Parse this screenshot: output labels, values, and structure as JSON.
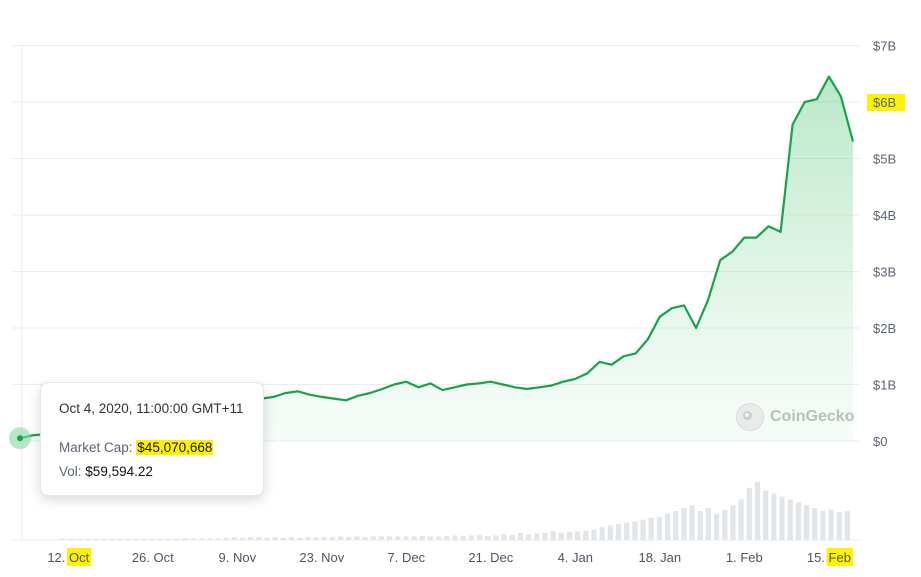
{
  "chart_data": {
    "type": "area",
    "x_tick_labels": [
      {
        "day": "12.",
        "month": "Oct",
        "highlight": true
      },
      {
        "day": "26.",
        "month": "Oct",
        "highlight": false
      },
      {
        "day": "9.",
        "month": "Nov",
        "highlight": false
      },
      {
        "day": "23.",
        "month": "Nov",
        "highlight": false
      },
      {
        "day": "7.",
        "month": "Dec",
        "highlight": false
      },
      {
        "day": "21.",
        "month": "Dec",
        "highlight": false
      },
      {
        "day": "4.",
        "month": "Jan",
        "highlight": false
      },
      {
        "day": "18.",
        "month": "Jan",
        "highlight": false
      },
      {
        "day": "1.",
        "month": "Feb",
        "highlight": false
      },
      {
        "day": "15.",
        "month": "Feb",
        "highlight": true
      }
    ],
    "x_tick_positions_days": [
      8,
      22,
      36,
      50,
      64,
      78,
      92,
      106,
      120,
      134
    ],
    "y_tick_labels": [
      {
        "label": "$0",
        "value": 0,
        "highlight": false
      },
      {
        "label": "$1B",
        "value": 1,
        "highlight": false
      },
      {
        "label": "$2B",
        "value": 2,
        "highlight": false
      },
      {
        "label": "$3B",
        "value": 3,
        "highlight": false
      },
      {
        "label": "$4B",
        "value": 4,
        "highlight": false
      },
      {
        "label": "$5B",
        "value": 5,
        "highlight": false
      },
      {
        "label": "$6B",
        "value": 6,
        "highlight": true
      },
      {
        "label": "$7B",
        "value": 7,
        "highlight": false
      }
    ],
    "ylim": [
      0,
      7
    ],
    "y_unit": "B USD",
    "xlim_days": [
      0,
      138
    ],
    "grid": true,
    "series": [
      {
        "color": "#16a34a",
        "x_days": [
          0,
          2,
          4,
          6,
          8,
          10,
          12,
          14,
          16,
          18,
          20,
          22,
          24,
          26,
          28,
          30,
          32,
          34,
          36,
          38,
          40,
          42,
          44,
          46,
          48,
          50,
          52,
          54,
          56,
          58,
          60,
          62,
          64,
          66,
          68,
          70,
          72,
          74,
          76,
          78,
          80,
          82,
          84,
          86,
          88,
          90,
          92,
          94,
          96,
          98,
          100,
          102,
          104,
          106,
          108,
          110,
          112,
          114,
          116,
          118,
          120,
          122,
          124,
          126,
          128,
          130,
          132,
          134,
          136,
          138
        ],
        "values": [
          0.05,
          0.1,
          0.12,
          0.15,
          0.18,
          0.2,
          0.22,
          0.25,
          0.3,
          0.33,
          0.35,
          0.4,
          0.42,
          0.48,
          0.52,
          0.5,
          0.55,
          0.6,
          0.55,
          0.68,
          0.75,
          0.78,
          0.85,
          0.88,
          0.82,
          0.78,
          0.75,
          0.72,
          0.8,
          0.85,
          0.92,
          1.0,
          1.05,
          0.95,
          1.02,
          0.9,
          0.95,
          1.0,
          1.02,
          1.05,
          1.0,
          0.95,
          0.92,
          0.95,
          0.98,
          1.05,
          1.1,
          1.2,
          1.4,
          1.35,
          1.5,
          1.55,
          1.8,
          2.2,
          2.35,
          2.4,
          2.0,
          2.5,
          3.2,
          3.35,
          3.6,
          3.6,
          3.8,
          3.7,
          5.6,
          6.0,
          6.05,
          6.45,
          6.1,
          5.3
        ]
      }
    ],
    "volume_bars": [
      0.02,
      0.02,
      0.02,
      0.02,
      0.02,
      0.02,
      0.02,
      0.02,
      0.02,
      0.02,
      0.02,
      0.02,
      0.02,
      0.02,
      0.02,
      0.03,
      0.03,
      0.03,
      0.03,
      0.03,
      0.04,
      0.05,
      0.04,
      0.05,
      0.05,
      0.04,
      0.05,
      0.04,
      0.05,
      0.04,
      0.05,
      0.05,
      0.05,
      0.05,
      0.06,
      0.05,
      0.06,
      0.05,
      0.06,
      0.06,
      0.06,
      0.06,
      0.06,
      0.06,
      0.07,
      0.06,
      0.06,
      0.07,
      0.08,
      0.07,
      0.08,
      0.09,
      0.07,
      0.08,
      0.1,
      0.09,
      0.12,
      0.1,
      0.11,
      0.12,
      0.15,
      0.13,
      0.14,
      0.15,
      0.16,
      0.18,
      0.22,
      0.25,
      0.28,
      0.3,
      0.32,
      0.35,
      0.38,
      0.4,
      0.45,
      0.5,
      0.55,
      0.6,
      0.5,
      0.55,
      0.45,
      0.52,
      0.6,
      0.7,
      0.9,
      1.0,
      0.85,
      0.8,
      0.75,
      0.7,
      0.65,
      0.6,
      0.55,
      0.5,
      0.52,
      0.48,
      0.5
    ]
  },
  "tooltip": {
    "date": "Oct 4, 2020, 11:00:00 GMT+11",
    "market_cap_label": "Market Cap:",
    "market_cap_value": "$45,070,668",
    "vol_label": "Vol:",
    "vol_value": "$59,594.22"
  },
  "watermark": "CoinGecko",
  "colors": {
    "line": "#16a34a",
    "area_top": "#86d9a0",
    "highlight": "#fff200",
    "grid": "#e9ebee",
    "volume": "#e2e5e8"
  }
}
